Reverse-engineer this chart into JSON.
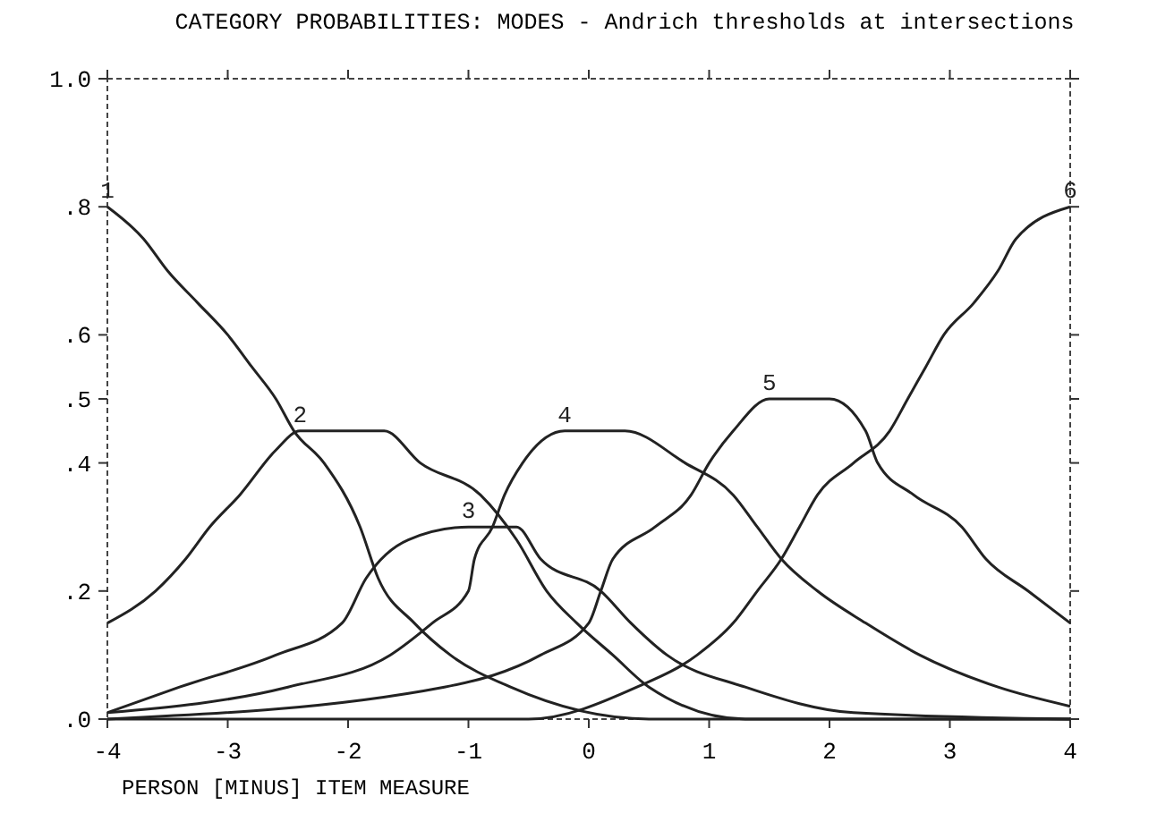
{
  "chart_data": {
    "type": "line",
    "title": "CATEGORY PROBABILITIES: MODES - Andrich thresholds at intersections",
    "xlabel": "PERSON [MINUS] ITEM MEASURE",
    "xlim": [
      -4,
      4
    ],
    "xticks": [
      -4,
      -3,
      -2,
      -1,
      0,
      1,
      2,
      3,
      4
    ],
    "ylim": [
      0,
      1
    ],
    "yticks": [
      {
        "value": 0,
        "label": ".0"
      },
      {
        "value": 0.2,
        "label": ".2"
      },
      {
        "value": 0.4,
        "label": ".4"
      },
      {
        "value": 0.5,
        "label": ".5"
      },
      {
        "value": 0.6,
        "label": ".6"
      },
      {
        "value": 0.8,
        "label": ".8"
      },
      {
        "value": 1,
        "label": "1.0"
      }
    ],
    "grid": false,
    "series": [
      {
        "name": "1",
        "color": "#222222",
        "x": [
          -4,
          -3.7,
          -3.5,
          -3.25,
          -3,
          -2.8,
          -2.6,
          -2.45,
          -2.2,
          -1.9,
          -1.75,
          -1.45,
          -1.15,
          -0.65,
          0.5,
          4
        ],
        "values": [
          0.8,
          0.75,
          0.7,
          0.65,
          0.6,
          0.55,
          0.5,
          0.45,
          0.4,
          0.3,
          0.22,
          0.15,
          0.1,
          0.05,
          0,
          0
        ]
      },
      {
        "name": "2",
        "color": "#222222",
        "x": [
          -4,
          -3.6,
          -3.35,
          -3.15,
          -2.9,
          -2.6,
          -2.4,
          -2,
          -1.7,
          -1.4,
          -0.9,
          -0.6,
          -0.35,
          -0.1,
          0.2,
          0.5,
          1.3,
          4
        ],
        "values": [
          0.15,
          0.2,
          0.25,
          0.3,
          0.35,
          0.42,
          0.45,
          0.45,
          0.45,
          0.4,
          0.35,
          0.28,
          0.2,
          0.15,
          0.1,
          0.05,
          0,
          0
        ]
      },
      {
        "name": "3",
        "color": "#222222",
        "x": [
          -4,
          -3.4,
          -2.6,
          -2.05,
          -1.85,
          -1.5,
          -1,
          -0.6,
          -0.4,
          0.1,
          0.35,
          0.65,
          1.3,
          2.2,
          4
        ],
        "values": [
          0.01,
          0.05,
          0.1,
          0.15,
          0.22,
          0.28,
          0.3,
          0.3,
          0.25,
          0.2,
          0.15,
          0.1,
          0.05,
          0.01,
          0
        ]
      },
      {
        "name": "4",
        "color": "#222222",
        "x": [
          -4,
          -2.5,
          -1.65,
          -1.3,
          -1,
          -0.95,
          -0.8,
          -0.7,
          -0.55,
          -0.2,
          0.3,
          0.8,
          1.2,
          1.4,
          1.6,
          1.9,
          2.3,
          2.75,
          3.4,
          4
        ],
        "values": [
          0.01,
          0.05,
          0.1,
          0.15,
          0.2,
          0.25,
          0.3,
          0.35,
          0.4,
          0.45,
          0.45,
          0.4,
          0.35,
          0.3,
          0.25,
          0.2,
          0.15,
          0.1,
          0.05,
          0.02
        ]
      },
      {
        "name": "5",
        "color": "#222222",
        "x": [
          -4,
          -1.2,
          -0.4,
          0,
          0.1,
          0.2,
          0.55,
          0.85,
          1,
          1.2,
          1.5,
          2,
          2.3,
          2.4,
          2.7,
          3.1,
          3.3,
          3.65,
          4
        ],
        "values": [
          0,
          0.05,
          0.1,
          0.15,
          0.2,
          0.25,
          0.3,
          0.35,
          0.4,
          0.45,
          0.5,
          0.5,
          0.45,
          0.4,
          0.35,
          0.3,
          0.25,
          0.2,
          0.15
        ]
      },
      {
        "name": "6",
        "color": "#222222",
        "x": [
          -4,
          -0.5,
          0.4,
          0.9,
          1.2,
          1.4,
          1.6,
          1.75,
          1.9,
          2.2,
          2.5,
          2.65,
          2.8,
          2.95,
          3.2,
          3.4,
          3.55,
          4
        ],
        "values": [
          0,
          0,
          0.05,
          0.1,
          0.15,
          0.2,
          0.25,
          0.3,
          0.35,
          0.4,
          0.45,
          0.5,
          0.55,
          0.6,
          0.65,
          0.7,
          0.75,
          0.8
        ]
      }
    ]
  }
}
